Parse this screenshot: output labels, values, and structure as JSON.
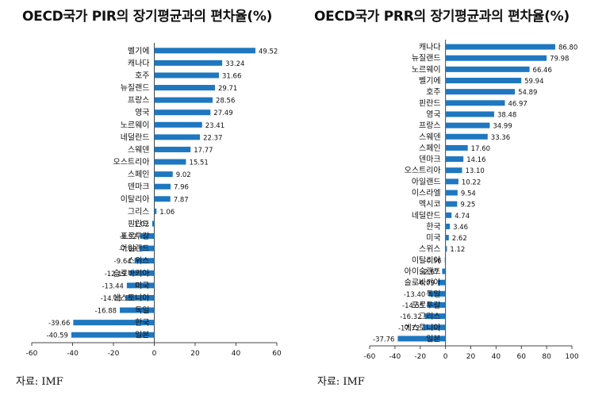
{
  "chart_data": [
    {
      "type": "bar",
      "orientation": "horizontal",
      "title": "OECD국가 PIR의 장기평균과의 편차율(%)",
      "categories": [
        "벨기에",
        "캐나다",
        "호주",
        "뉴질랜드",
        "프랑스",
        "영국",
        "노르웨이",
        "네덜란드",
        "스웨덴",
        "오스트리아",
        "스페인",
        "덴마크",
        "이탈리아",
        "그리스",
        "핀란드",
        "포르투갈",
        "아일랜드",
        "스위스",
        "슬로바키아",
        "미국",
        "에스토니아",
        "독일",
        "한국",
        "일본"
      ],
      "values": [
        49.52,
        33.24,
        31.66,
        29.71,
        28.56,
        27.49,
        23.41,
        22.37,
        17.77,
        15.51,
        9.02,
        7.96,
        7.87,
        1.06,
        -1.02,
        -6.92,
        -7.09,
        -9.64,
        -12.19,
        -13.44,
        -14.15,
        -16.88,
        -39.66,
        -40.59
      ],
      "value_labels": [
        "49.52",
        "33.24",
        "31.66",
        "29.71",
        "28.56",
        "27.49",
        "23.41",
        "22.37",
        "17.77",
        "15.51",
        "9.02",
        "7.96",
        "7.87",
        "1.06",
        "-1.02",
        "-6.92",
        "-7.09",
        "-9.64",
        "-12.19",
        "-13.44",
        "-14.15",
        "-16.88",
        "-39.66",
        "-40.59"
      ],
      "xlim": [
        -60,
        60
      ],
      "ticks": [
        "-60",
        "-40",
        "-20",
        "0",
        "20",
        "40",
        "60"
      ],
      "tick_values": [
        -60,
        -40,
        -20,
        0,
        20,
        40,
        60
      ],
      "color": "#1f77c0",
      "source_label": "자료:",
      "source": "IMF"
    },
    {
      "type": "bar",
      "orientation": "horizontal",
      "title": "OECD국가 PRR의 장기평균과의 편차율(%)",
      "categories": [
        "캐나다",
        "뉴질랜드",
        "노르웨이",
        "벨기에",
        "호주",
        "핀란드",
        "영국",
        "프랑스",
        "스웨덴",
        "스페인",
        "덴마크",
        "오스트리아",
        "아일랜드",
        "이스라엘",
        "멕시코",
        "네덜란드",
        "한국",
        "미국",
        "스위스",
        "이탈리아",
        "아이슬랜드",
        "슬로바키아",
        "독일",
        "포르투갈",
        "그리스",
        "에스토니아",
        "일본"
      ],
      "values": [
        86.8,
        79.98,
        66.46,
        59.94,
        54.89,
        46.97,
        38.48,
        34.99,
        33.36,
        17.6,
        14.16,
        13.1,
        10.22,
        9.54,
        9.25,
        4.74,
        3.46,
        2.62,
        1.12,
        -0.56,
        -2.67,
        -6.09,
        -13.4,
        -14.55,
        -16.32,
        -17.72,
        -37.76
      ],
      "value_labels": [
        "86.80",
        "79.98",
        "66.46",
        "59.94",
        "54.89",
        "46.97",
        "38.48",
        "34.99",
        "33.36",
        "17.60",
        "14.16",
        "13.10",
        "10.22",
        "9.54",
        "9.25",
        "4.74",
        "3.46",
        "2.62",
        "1.12",
        "-0.56",
        "-2.67",
        "-6.09",
        "-13.40",
        "-14.55",
        "-16.32",
        "-17.72",
        "-37.76"
      ],
      "xlim": [
        -60,
        100
      ],
      "ticks": [
        "-60",
        "-40",
        "-20",
        "0",
        "20",
        "40",
        "60",
        "80",
        "100"
      ],
      "tick_values": [
        -60,
        -40,
        -20,
        0,
        20,
        40,
        60,
        80,
        100
      ],
      "color": "#1f77c0",
      "source_label": "자료:",
      "source": "IMF"
    }
  ]
}
